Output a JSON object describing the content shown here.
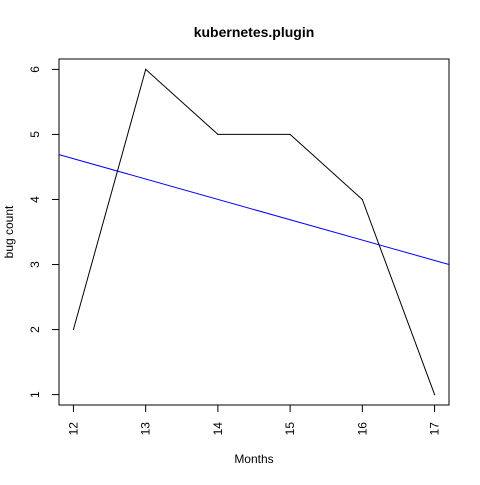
{
  "chart_data": {
    "type": "line",
    "title": "kubernetes.plugin",
    "xlabel": "Months",
    "ylabel": "bug count",
    "x": [
      12,
      13,
      14,
      15,
      16,
      17
    ],
    "series": [
      {
        "values": [
          2,
          6,
          5,
          5,
          4,
          1
        ],
        "color": "#000000"
      }
    ],
    "trend_line": {
      "color": "#0000ff",
      "start": [
        11.8,
        4.69
      ],
      "end": [
        17.2,
        3.0
      ]
    },
    "xlim": [
      11.8,
      17.2
    ],
    "ylim": [
      0.84,
      6.16
    ],
    "x_ticks": [
      12,
      13,
      14,
      15,
      16,
      17
    ],
    "x_tick_labels": [
      "12",
      "13",
      "14",
      "15",
      "16",
      "17"
    ],
    "y_ticks": [
      1,
      2,
      3,
      4,
      5,
      6
    ],
    "y_tick_labels": [
      "1",
      "2",
      "3",
      "4",
      "5",
      "6"
    ],
    "grid": false,
    "legend": "none"
  }
}
